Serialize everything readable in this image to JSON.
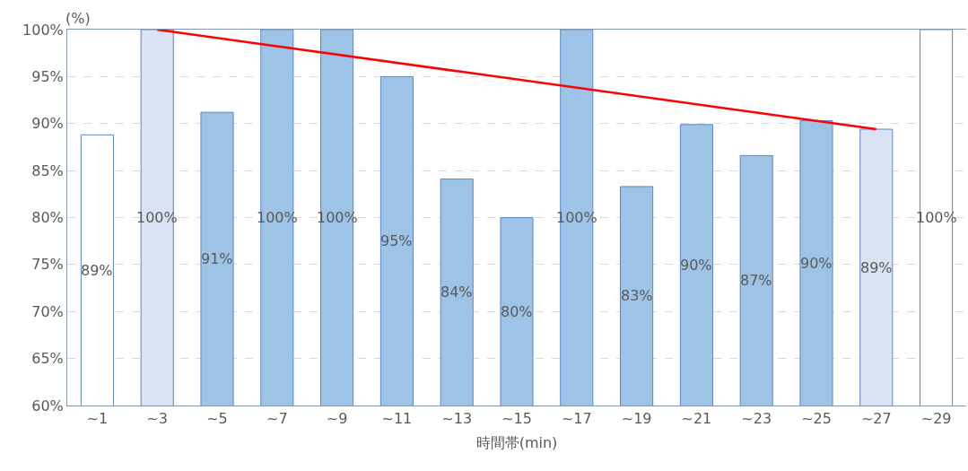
{
  "chart_data": {
    "type": "bar",
    "xlabel": "時間帯(min)",
    "ylabel": "(%)",
    "categories": [
      "~1",
      "~3",
      "~5",
      "~7",
      "~9",
      "~11",
      "~13",
      "~15",
      "~17",
      "~19",
      "~21",
      "~23",
      "~25",
      "~27",
      "~29"
    ],
    "series": [
      {
        "values": [
          88.8,
          100,
          91.2,
          100,
          100,
          95,
          84.1,
          80,
          100,
          83.3,
          89.9,
          86.6,
          90.3,
          89.4,
          100
        ],
        "colors": [
          "#ffffff",
          "#dae3f3",
          "#9dc3e6",
          "#9dc3e6",
          "#9dc3e6",
          "#9dc3e6",
          "#9dc3e6",
          "#9dc3e6",
          "#9dc3e6",
          "#9dc3e6",
          "#9dc3e6",
          "#9dc3e6",
          "#9dc3e6",
          "#dae3f3",
          "#ffffff"
        ],
        "value_labels": [
          "89%",
          "100%",
          "91%",
          "100%",
          "100%",
          "95%",
          "84%",
          "80%",
          "100%",
          "83%",
          "90%",
          "87%",
          "90%",
          "89%",
          "100%"
        ]
      },
      {
        "type": "line",
        "x": [
          "~3",
          "~27"
        ],
        "values": [
          100,
          89.4
        ],
        "color": "#ff0000"
      }
    ],
    "ylim": [
      60,
      100
    ],
    "yticks": [
      {
        "value": 60,
        "label": "60%"
      },
      {
        "value": 65,
        "label": "65%"
      },
      {
        "value": 70,
        "label": "70%"
      },
      {
        "value": 75,
        "label": "75%"
      },
      {
        "value": 80,
        "label": "80%"
      },
      {
        "value": 85,
        "label": "85%"
      },
      {
        "value": 90,
        "label": "90%"
      },
      {
        "value": 95,
        "label": "95%"
      },
      {
        "value": 100,
        "label": "100%"
      }
    ],
    "grid": "y"
  }
}
